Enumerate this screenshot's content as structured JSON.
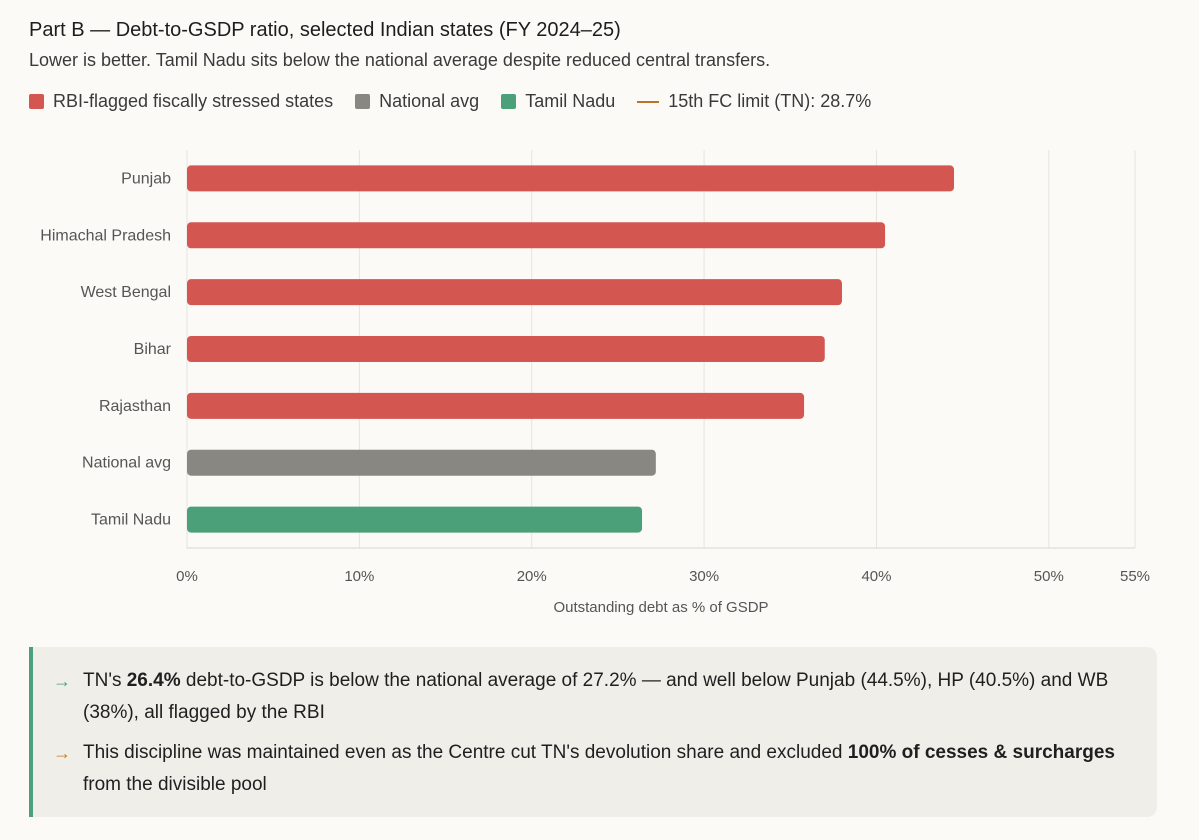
{
  "title": "Part B — Debt-to-GSDP ratio, selected Indian states (FY 2024–25)",
  "subtitle": "Lower is better. Tamil Nadu sits below the national average despite reduced central transfers.",
  "legend": [
    {
      "label": "RBI-flagged fiscally stressed states",
      "color": "#d35651",
      "kind": "box"
    },
    {
      "label": "National avg",
      "color": "#898781",
      "kind": "box"
    },
    {
      "label": "Tamil Nadu",
      "color": "#4ba07a",
      "kind": "box"
    },
    {
      "label": "15th FC limit (TN): 28.7%",
      "color": "#b8732a",
      "kind": "line"
    }
  ],
  "chart_data": {
    "type": "bar",
    "orientation": "horizontal",
    "categories": [
      "Punjab",
      "Himachal Pradesh",
      "West Bengal",
      "Bihar",
      "Rajasthan",
      "National avg",
      "Tamil Nadu"
    ],
    "values": [
      44.5,
      40.5,
      38.0,
      37.0,
      35.8,
      27.2,
      26.4
    ],
    "bar_colors": [
      "#d35651",
      "#d35651",
      "#d35651",
      "#d35651",
      "#d35651",
      "#898781",
      "#4ba07a"
    ],
    "xlabel": "Outstanding debt as % of GSDP",
    "ylabel": "",
    "xlim": [
      0,
      55
    ],
    "xticks": [
      0,
      10,
      20,
      30,
      40,
      50,
      55
    ],
    "xtick_labels": [
      "0%",
      "10%",
      "20%",
      "30%",
      "40%",
      "50%",
      "55%"
    ],
    "grid": true
  },
  "callout": {
    "points": [
      {
        "arrow": "→",
        "arrow_color": "#4ba07a",
        "parts": [
          {
            "text": "TN's ",
            "bold": false
          },
          {
            "text": "26.4%",
            "bold": true
          },
          {
            "text": " debt-to-GSDP is below the national average of 27.2% — and well below Punjab (44.5%), HP (40.5%) and WB (38%), all flagged by the RBI",
            "bold": false
          }
        ]
      },
      {
        "arrow": "→",
        "arrow_color": "#c47a2c",
        "parts": [
          {
            "text": "This discipline was maintained even as the Centre cut TN's devolution share and excluded ",
            "bold": false
          },
          {
            "text": "100% of cesses & surcharges",
            "bold": true
          },
          {
            "text": " from the divisible pool",
            "bold": false
          }
        ]
      }
    ]
  }
}
